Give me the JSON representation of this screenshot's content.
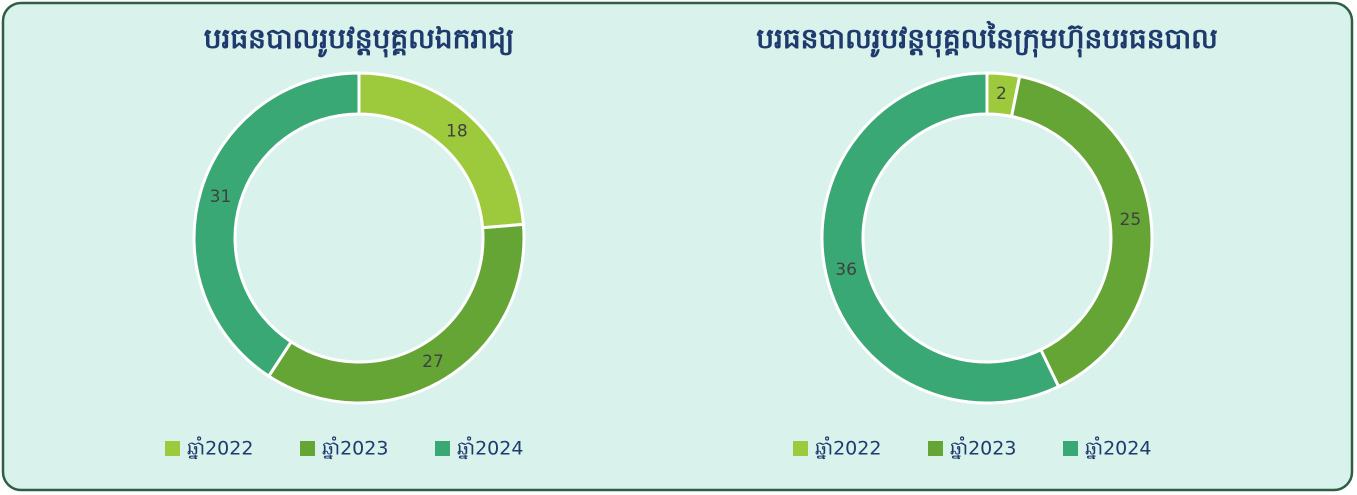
{
  "chart_data": [
    {
      "type": "donut",
      "title": "បរធនបាលរូបវន្តបុគ្គលឯករាជ្យ",
      "categories": [
        "ឆ្នាំ2022",
        "ឆ្នាំ2023",
        "ឆ្នាំ2024"
      ],
      "values": [
        18,
        27,
        31
      ],
      "colors": [
        "#9dca3c",
        "#64a536",
        "#3aa874"
      ]
    },
    {
      "type": "donut",
      "title": "បរធនបាលរូបវន្តបុគ្គលនៃក្រុមហ៊ុនបរធនបាល",
      "categories": [
        "ឆ្នាំ2022",
        "ឆ្នាំ2023",
        "ឆ្នាំ2024"
      ],
      "values": [
        2,
        25,
        36
      ],
      "colors": [
        "#9dca3c",
        "#64a536",
        "#3aa874"
      ]
    }
  ]
}
